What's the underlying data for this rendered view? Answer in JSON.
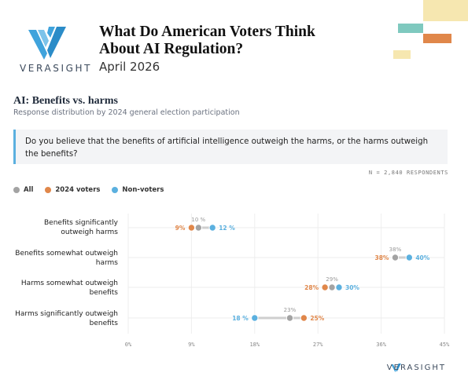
{
  "brand": {
    "name": "VERASIGHT",
    "colors": {
      "primary": "#3fa3dc",
      "dark": "#3c4a5c"
    }
  },
  "header": {
    "title": "What Do American Voters Think About AI Regulation?",
    "date": "April 2026"
  },
  "section": {
    "title": "AI: Benefits vs. harms",
    "subtitle": "Response distribution by 2024 general election participation"
  },
  "question": "Do you believe that the benefits of artificial intelligence outweigh the harms, or the harms outweigh the benefits?",
  "respondents": "N = 2,840 RESPONDENTS",
  "legend": [
    {
      "label": "All",
      "color": "#a3a3a3"
    },
    {
      "label": "2024 voters",
      "color": "#e0874a"
    },
    {
      "label": "Non-voters",
      "color": "#5bb0df"
    }
  ],
  "decorative_colors": [
    "#f6e7b0",
    "#7fc9bf",
    "#e0874a",
    "#f6e7b0"
  ],
  "chart_data": {
    "type": "dot",
    "categories": [
      "Benefits significantly outweigh harms",
      "Benefits somewhat outweigh harms",
      "Harms somewhat outweigh benefits",
      "Harms significantly outweigh benefits"
    ],
    "category_lines": [
      [
        "Benefits significantly",
        "outweigh harms"
      ],
      [
        "Benefits somewhat outweigh",
        "harms"
      ],
      [
        "Harms somewhat outweigh",
        "benefits"
      ],
      [
        "Harms significantly outweigh",
        "benefits"
      ]
    ],
    "series": [
      {
        "name": "All",
        "color": "#a3a3a3",
        "values": [
          10,
          38,
          29,
          23
        ],
        "labels": [
          "10 %",
          "38%",
          "29%",
          "23%"
        ]
      },
      {
        "name": "2024 voters",
        "color": "#e0874a",
        "values": [
          9,
          38,
          28,
          25
        ],
        "labels": [
          "9%",
          "38%",
          "28%",
          "25%"
        ]
      },
      {
        "name": "Non-voters",
        "color": "#5bb0df",
        "values": [
          12,
          40,
          30,
          18
        ],
        "labels": [
          "12 %",
          "40%",
          "30%",
          "18 %"
        ]
      }
    ],
    "xlim": [
      0,
      45
    ],
    "xticks": [
      0,
      9,
      18,
      27,
      36,
      45
    ],
    "xtick_labels": [
      "0%",
      "9%",
      "18%",
      "27%",
      "36%",
      "45%"
    ],
    "grid": true,
    "legend_position": "top-left"
  }
}
